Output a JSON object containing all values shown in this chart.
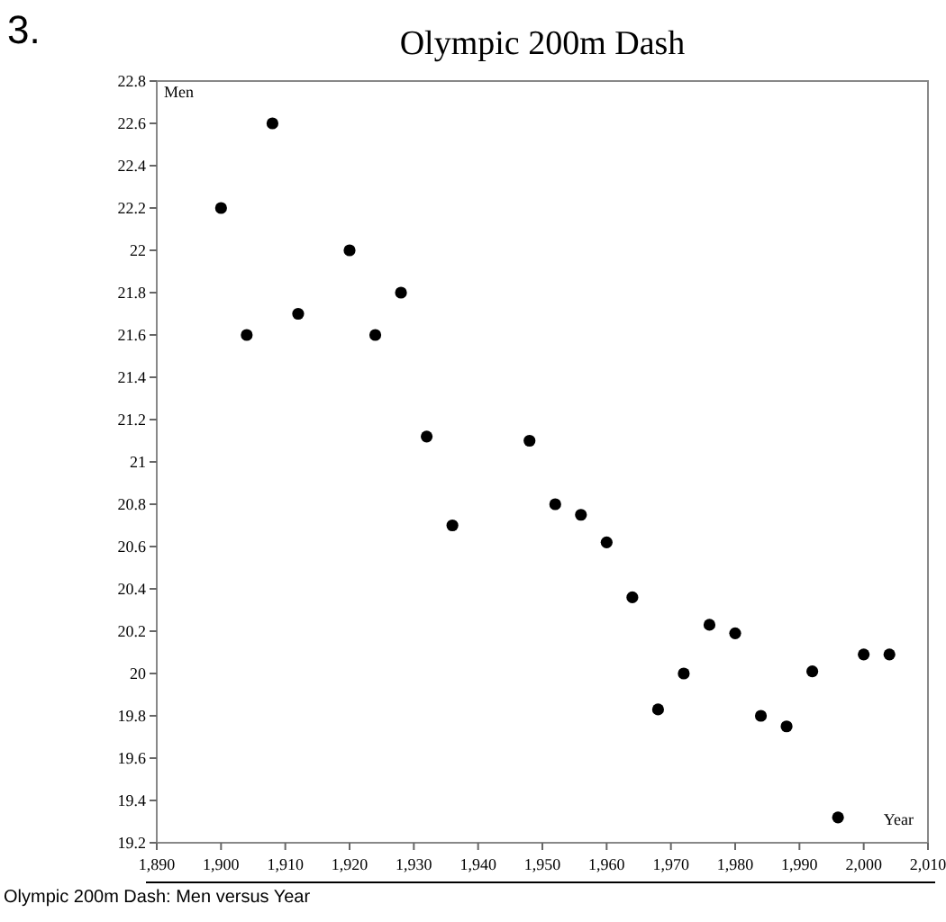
{
  "chart_data": {
    "type": "scatter",
    "title": "Olympic 200m Dash",
    "xlabel": "Year",
    "ylabel": "Men",
    "annotations": [
      "3.",
      "Olympic 200m Dash: Men versus Year"
    ],
    "x": [
      1900,
      1904,
      1908,
      1912,
      1920,
      1924,
      1928,
      1932,
      1936,
      1948,
      1952,
      1956,
      1960,
      1964,
      1968,
      1972,
      1976,
      1980,
      1984,
      1988,
      1992,
      1996,
      2000,
      2004
    ],
    "values": [
      22.2,
      21.6,
      22.6,
      21.7,
      22.0,
      21.6,
      21.8,
      21.12,
      20.7,
      21.1,
      20.8,
      20.75,
      20.62,
      20.36,
      19.83,
      20.0,
      20.23,
      20.19,
      19.8,
      19.75,
      20.01,
      19.32,
      20.09,
      20.09
    ],
    "color": "#000000",
    "marker": "circle",
    "grid": false,
    "xlim": [
      1890,
      2010
    ],
    "xticks": [
      {
        "value": 1890,
        "label": "1,890"
      },
      {
        "value": 1900,
        "label": "1,900"
      },
      {
        "value": 1910,
        "label": "1,910"
      },
      {
        "value": 1920,
        "label": "1,920"
      },
      {
        "value": 1930,
        "label": "1,930"
      },
      {
        "value": 1940,
        "label": "1,940"
      },
      {
        "value": 1950,
        "label": "1,950"
      },
      {
        "value": 1960,
        "label": "1,960"
      },
      {
        "value": 1970,
        "label": "1,970"
      },
      {
        "value": 1980,
        "label": "1,980"
      },
      {
        "value": 1990,
        "label": "1,990"
      },
      {
        "value": 2000,
        "label": "2,000"
      },
      {
        "value": 2010,
        "label": "2,010"
      }
    ],
    "ylim": [
      19.2,
      22.8
    ],
    "yticks": [
      19.2,
      19.4,
      19.6,
      19.8,
      20,
      20.2,
      20.4,
      20.6,
      20.8,
      21,
      21.2,
      21.4,
      21.6,
      21.8,
      22,
      22.2,
      22.4,
      22.6,
      22.8
    ]
  }
}
